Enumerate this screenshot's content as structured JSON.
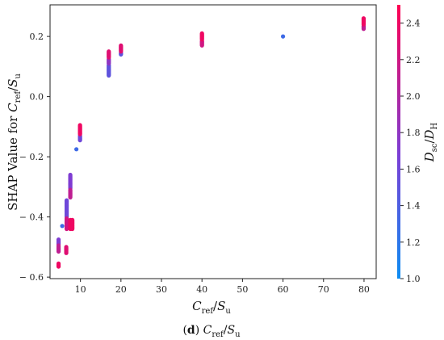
{
  "caption": {
    "panel": "d",
    "var_main": "C",
    "var_sub": "ref",
    "slash": "/",
    "var2_main": "S",
    "var2_sub": "u"
  },
  "chart_data": {
    "type": "scatter",
    "xlabel": {
      "main": "C",
      "sub": "ref",
      "slash": "/",
      "main2": "S",
      "sub2": "u"
    },
    "ylabel": {
      "prefix": "SHAP Value for ",
      "main": "C",
      "sub": "ref",
      "slash": "/",
      "main2": "S",
      "sub2": "u"
    },
    "colorbar_label": {
      "main": "D",
      "sub": "sc",
      "slash": "/",
      "main2": "D",
      "sub2": "H"
    },
    "xlim": [
      2.5,
      83
    ],
    "ylim": [
      -0.605,
      0.305
    ],
    "xticks": [
      10,
      20,
      30,
      40,
      50,
      60,
      70,
      80
    ],
    "xtick_labels": [
      "10",
      "20",
      "30",
      "40",
      "50",
      "60",
      "70",
      "80"
    ],
    "yticks": [
      -0.6,
      -0.4,
      -0.2,
      0.0,
      0.2
    ],
    "ytick_labels": [
      "− 0.6",
      "− 0.4",
      "− 0.2",
      "0.0",
      "0.2"
    ],
    "color_range": [
      1.0,
      2.5
    ],
    "colorbar_ticks": [
      1.0,
      1.2,
      1.4,
      1.6,
      1.8,
      2.0,
      2.2,
      2.4
    ],
    "colorbar_tick_labels": [
      "1.0",
      "1.2",
      "1.4",
      "1.6",
      "1.8",
      "2.0",
      "2.2",
      "2.4"
    ],
    "colormap": [
      "#0d8df2",
      "#7b3fd6",
      "#ff0052"
    ],
    "grid": false,
    "clusters": [
      {
        "x": 4.6,
        "y0": -0.49,
        "y1": -0.475,
        "c": 1.7
      },
      {
        "x": 4.6,
        "y0": -0.515,
        "y1": -0.495,
        "c": 2.1
      },
      {
        "x": 4.6,
        "y0": -0.565,
        "y1": -0.555,
        "c": 2.4
      },
      {
        "x": 5.5,
        "y0": -0.43,
        "y1": -0.43,
        "c": 1.3
      },
      {
        "x": 6.5,
        "y0": -0.52,
        "y1": -0.5,
        "c": 2.3
      },
      {
        "x": 6.6,
        "y0": -0.4,
        "y1": -0.345,
        "c": 1.6
      },
      {
        "x": 6.6,
        "y0": -0.44,
        "y1": -0.405,
        "c": 2.2
      },
      {
        "x": 7.5,
        "y0": -0.305,
        "y1": -0.26,
        "c": 1.7
      },
      {
        "x": 7.5,
        "y0": -0.335,
        "y1": -0.31,
        "c": 2.1
      },
      {
        "x": 7.5,
        "y0": -0.44,
        "y1": -0.41,
        "c": 2.4
      },
      {
        "x": 8.0,
        "y0": -0.44,
        "y1": -0.41,
        "c": 2.4
      },
      {
        "x": 9.0,
        "y0": -0.175,
        "y1": -0.175,
        "c": 1.3
      },
      {
        "x": 9.9,
        "y0": -0.145,
        "y1": -0.13,
        "c": 1.6
      },
      {
        "x": 9.9,
        "y0": -0.125,
        "y1": -0.095,
        "c": 2.4
      },
      {
        "x": 17.0,
        "y0": 0.07,
        "y1": 0.105,
        "c": 1.5
      },
      {
        "x": 17.0,
        "y0": 0.11,
        "y1": 0.125,
        "c": 1.8
      },
      {
        "x": 17.0,
        "y0": 0.13,
        "y1": 0.15,
        "c": 2.3
      },
      {
        "x": 20.0,
        "y0": 0.14,
        "y1": 0.145,
        "c": 1.5
      },
      {
        "x": 20.0,
        "y0": 0.15,
        "y1": 0.17,
        "c": 2.3
      },
      {
        "x": 40.0,
        "y0": 0.17,
        "y1": 0.185,
        "c": 2.2
      },
      {
        "x": 40.0,
        "y0": 0.19,
        "y1": 0.21,
        "c": 2.4
      },
      {
        "x": 60.0,
        "y0": 0.2,
        "y1": 0.2,
        "c": 1.3
      },
      {
        "x": 79.9,
        "y0": 0.225,
        "y1": 0.235,
        "c": 2.1
      },
      {
        "x": 79.9,
        "y0": 0.24,
        "y1": 0.26,
        "c": 2.4
      }
    ]
  }
}
